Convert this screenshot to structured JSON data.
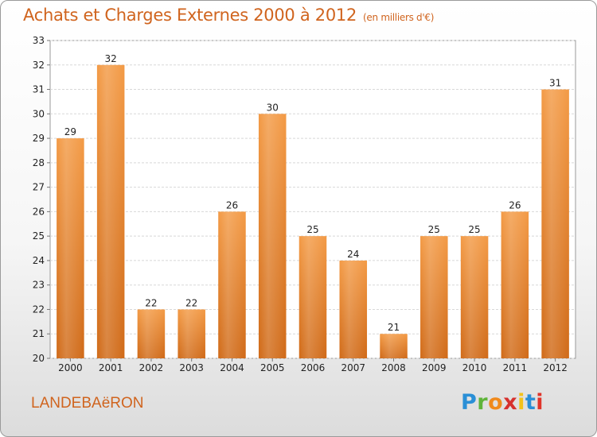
{
  "title": "Achats et Charges Externes 2000 à 2012",
  "unit": "(en milliers d'€)",
  "commune": "LANDEBAëRON",
  "logo": {
    "letters": [
      "P",
      "r",
      "o",
      "x",
      "i",
      "t",
      "i"
    ],
    "colors": [
      "#2a8fd6",
      "#5fb43a",
      "#f08a1c",
      "#d6312e",
      "#f3c21b",
      "#2a8fd6",
      "#e0342a"
    ]
  },
  "chart_data": {
    "type": "bar",
    "categories": [
      "2000",
      "2001",
      "2002",
      "2003",
      "2004",
      "2005",
      "2006",
      "2007",
      "2008",
      "2009",
      "2010",
      "2011",
      "2012"
    ],
    "values": [
      29,
      32,
      22,
      22,
      26,
      30,
      25,
      24,
      21,
      25,
      25,
      26,
      31
    ],
    "title": "Achats et Charges Externes 2000 à 2012",
    "xlabel": "",
    "ylabel": "",
    "ylim": [
      20,
      33
    ],
    "yticks": [
      20,
      21,
      22,
      23,
      24,
      25,
      26,
      27,
      28,
      29,
      30,
      31,
      32,
      33
    ],
    "grid": true,
    "bar_color": "#f39a45",
    "bar_color_dark": "#d06a18"
  }
}
